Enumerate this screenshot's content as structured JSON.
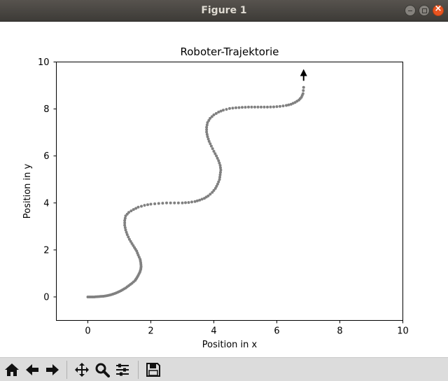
{
  "window": {
    "title": "Figure 1"
  },
  "toolbar": {
    "buttons": [
      {
        "name": "home-icon"
      },
      {
        "name": "back-arrow-icon"
      },
      {
        "name": "forward-arrow-icon"
      },
      {
        "name": "pan-icon"
      },
      {
        "name": "zoom-icon"
      },
      {
        "name": "configure-subplots-icon"
      },
      {
        "name": "save-icon"
      }
    ]
  },
  "chart_data": {
    "type": "scatter",
    "title": "Roboter-Trajektorie",
    "xlabel": "Position in x",
    "ylabel": "Position in y",
    "xlim": [
      -1,
      10
    ],
    "ylim": [
      -1,
      10
    ],
    "xticks": [
      "0",
      "2",
      "4",
      "6",
      "8",
      "10"
    ],
    "yticks": [
      "0",
      "2",
      "4",
      "6",
      "8",
      "10"
    ],
    "grid": false,
    "colors": {
      "points": "#808080",
      "arrow": "#000000"
    },
    "arrow": {
      "from": [
        6.85,
        9.2
      ],
      "to": [
        6.85,
        9.7
      ]
    },
    "x": [
      0.0,
      0.1,
      0.2,
      0.3,
      0.4,
      0.5,
      0.6,
      0.7,
      0.8,
      0.9,
      1.0,
      1.1,
      1.2,
      1.3,
      1.4,
      1.5,
      1.55,
      1.6,
      1.65,
      1.68,
      1.69,
      1.68,
      1.66,
      1.6,
      1.55,
      1.48,
      1.4,
      1.32,
      1.25,
      1.2,
      1.17,
      1.17,
      1.2,
      1.3,
      1.45,
      1.6,
      1.8,
      2.0,
      2.25,
      2.5,
      2.75,
      3.0,
      3.2,
      3.4,
      3.55,
      3.7,
      3.82,
      3.95,
      4.05,
      4.12,
      4.18,
      4.2,
      4.22,
      4.2,
      4.15,
      4.08,
      4.0,
      3.92,
      3.85,
      3.8,
      3.77,
      3.77,
      3.8,
      3.88,
      4.0,
      4.15,
      4.3,
      4.5,
      4.7,
      4.9,
      5.1,
      5.3,
      5.5,
      5.7,
      5.9,
      6.1,
      6.3,
      6.45,
      6.58,
      6.7,
      6.78,
      6.83,
      6.85
    ],
    "y": [
      0.0,
      0.0,
      0.0,
      0.01,
      0.02,
      0.03,
      0.05,
      0.08,
      0.12,
      0.17,
      0.23,
      0.3,
      0.38,
      0.48,
      0.58,
      0.7,
      0.8,
      0.92,
      1.05,
      1.18,
      1.3,
      1.45,
      1.6,
      1.78,
      1.95,
      2.1,
      2.27,
      2.45,
      2.65,
      2.85,
      3.05,
      3.25,
      3.45,
      3.6,
      3.72,
      3.82,
      3.9,
      3.95,
      3.98,
      4.0,
      4.0,
      4.0,
      4.02,
      4.06,
      4.12,
      4.2,
      4.3,
      4.45,
      4.62,
      4.8,
      5.0,
      5.2,
      5.4,
      5.6,
      5.8,
      6.0,
      6.2,
      6.42,
      6.62,
      6.82,
      7.02,
      7.22,
      7.42,
      7.6,
      7.75,
      7.87,
      7.95,
      8.02,
      8.05,
      8.07,
      8.08,
      8.08,
      8.08,
      8.08,
      8.09,
      8.11,
      8.15,
      8.2,
      8.28,
      8.38,
      8.5,
      8.65,
      8.92
    ]
  }
}
